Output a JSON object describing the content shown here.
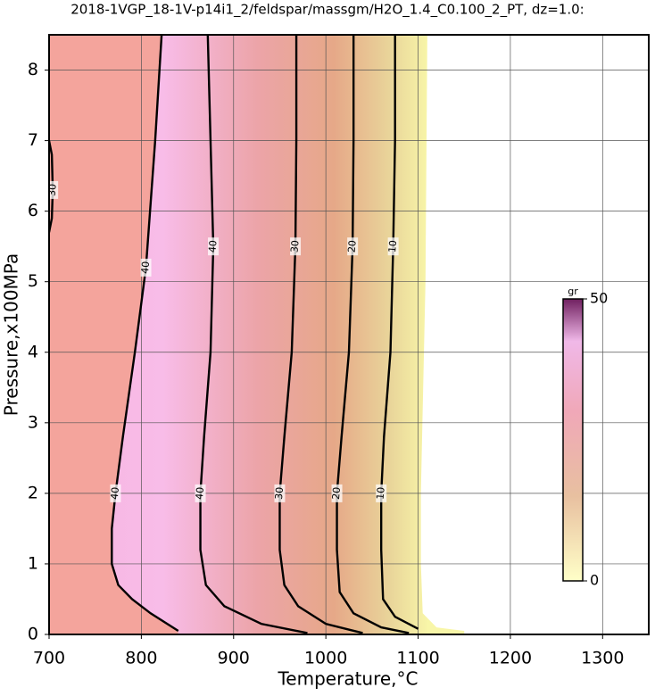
{
  "chart_data": {
    "type": "contour",
    "title": "2018-1VGP_18-1V-p14i1_2/feldspar/massgm/H2O_1.4_C0.100_2_PT, dz=1.0:",
    "x_label": "Temperature,°C",
    "y_label": "Pressure,x100MPa",
    "xlim": [
      700,
      1350
    ],
    "ylim": [
      0,
      8.5
    ],
    "xticks": [
      700,
      800,
      900,
      1000,
      1100,
      1200,
      1300
    ],
    "yticks": [
      0,
      1,
      2,
      3,
      4,
      5,
      6,
      7,
      8
    ],
    "grid": true,
    "series": [
      {
        "level": 40,
        "x": [
          822,
          815,
          805,
          793,
          780,
          772,
          768,
          768,
          775,
          790,
          810,
          840
        ],
        "y": [
          8.5,
          7,
          5.2,
          4,
          2.8,
          2,
          1.5,
          1.0,
          0.7,
          0.5,
          0.3,
          0.05
        ]
      },
      {
        "level": 40,
        "x": [
          872,
          875,
          878,
          875,
          868,
          864,
          864,
          870,
          890,
          930,
          980
        ],
        "y": [
          8.5,
          7,
          5.5,
          4,
          2.8,
          2,
          1.2,
          0.7,
          0.4,
          0.15,
          0.02
        ]
      },
      {
        "level": 30,
        "x": [
          968,
          968,
          967,
          963,
          955,
          950,
          950,
          955,
          970,
          1000,
          1040
        ],
        "y": [
          8.5,
          7,
          5.5,
          4,
          2.8,
          2,
          1.2,
          0.7,
          0.4,
          0.15,
          0.02
        ]
      },
      {
        "level": 20,
        "x": [
          1030,
          1030,
          1029,
          1025,
          1017,
          1012,
          1012,
          1015,
          1030,
          1060,
          1090
        ],
        "y": [
          8.5,
          7,
          5.5,
          4,
          2.8,
          2,
          1.2,
          0.6,
          0.3,
          0.1,
          0.02
        ]
      },
      {
        "level": 10,
        "x": [
          1075,
          1075,
          1073,
          1070,
          1063,
          1060,
          1060,
          1062,
          1075,
          1100
        ],
        "y": [
          8.5,
          7,
          5.5,
          4,
          2.8,
          2,
          1.2,
          0.5,
          0.25,
          0.08
        ]
      },
      {
        "level": 30,
        "x": [
          700,
          703,
          704,
          703,
          700
        ],
        "y": [
          7,
          6.8,
          6.3,
          5.9,
          5.7
        ]
      }
    ],
    "colorbar": {
      "label": "gr",
      "lim": [
        0,
        50
      ],
      "ticks": [
        0,
        50
      ]
    }
  }
}
